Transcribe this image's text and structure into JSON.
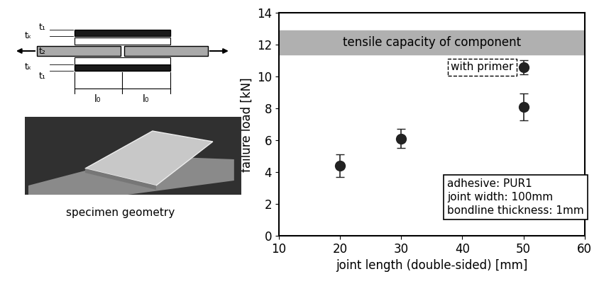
{
  "chart_data": {
    "type": "scatter",
    "x_label": "joint length (double-sided) [mm]",
    "y_label": "failure load [kN]",
    "x": [
      20,
      30,
      50,
      50
    ],
    "values": [
      4.4,
      6.1,
      8.1,
      10.6
    ],
    "errors": [
      0.7,
      0.6,
      0.85,
      0.45
    ],
    "color": "#222222",
    "marker": "circle",
    "xlim": [
      10,
      60
    ],
    "xticks": [
      10,
      20,
      30,
      40,
      50,
      60
    ],
    "ylim": [
      0,
      14
    ],
    "yticks": [
      0,
      2,
      4,
      6,
      8,
      10,
      12,
      14
    ],
    "band": {
      "label": "tensile capacity of component",
      "range": [
        11.4,
        12.9
      ],
      "color": "#b0b0b0"
    },
    "annotations": [
      {
        "text": "with primer",
        "point": 3
      }
    ],
    "info": [
      "adhesive: PUR1",
      "joint width: 100mm",
      "bondline thickness: 1mm"
    ],
    "grid": false
  },
  "diagram": {
    "labels": {
      "tk": "tₖ",
      "t1": "t₁",
      "t2": "t₂",
      "l0": "l₀"
    },
    "caption": "specimen geometry"
  }
}
